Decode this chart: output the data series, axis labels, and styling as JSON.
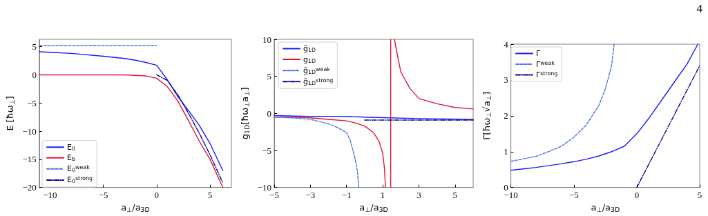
{
  "chart_data": [
    {
      "type": "line",
      "xlabel": "a$_{⊥}$/a$_{3D}$",
      "ylabel": "E [ħω$_{⊥}$]",
      "xlim": [
        -11,
        7
      ],
      "ylim": [
        -20,
        6.3
      ],
      "xticks": [
        -10,
        -5,
        0,
        5
      ],
      "yticks": [
        -20,
        -15,
        -10,
        -5,
        0,
        5
      ],
      "grid": false,
      "legend": "bottom left",
      "series": [
        {
          "name": "E$_{0}$",
          "color": "#1a1aff",
          "line_style": "solid",
          "x": [
            -11,
            -10,
            -8,
            -5,
            -3,
            -2,
            -1,
            0,
            1,
            2,
            3,
            4,
            5,
            6.2
          ],
          "values": [
            4.1,
            4.0,
            3.8,
            3.3,
            2.9,
            2.6,
            2.2,
            1.7,
            -0.9,
            -3.9,
            -6.4,
            -9.0,
            -12.2,
            -17.0
          ]
        },
        {
          "name": "E$_{b}$",
          "color": "#dc143c",
          "line_style": "solid",
          "x": [
            -11,
            -8,
            -5,
            -3,
            -2,
            -1,
            0,
            1,
            2,
            3,
            4,
            5,
            6.2
          ],
          "values": [
            0,
            0,
            0,
            0,
            -0.1,
            -0.2,
            -0.6,
            -2.1,
            -4.7,
            -8.2,
            -11.8,
            -15.0,
            -20.0
          ]
        },
        {
          "name": "E$_{0}$$^{weak}$",
          "color": "#4f74e3",
          "line_style": "dashed",
          "x": [
            -11,
            0
          ],
          "values": [
            5.2,
            5.2
          ]
        },
        {
          "name": "E$_{0}$$^{strong}$",
          "color": "#000080",
          "line_style": "dashdot",
          "x": [
            0,
            1,
            2,
            3,
            4,
            5,
            6.2
          ],
          "values": [
            0,
            -1.0,
            -3.6,
            -6.9,
            -10.4,
            -14.2,
            -19.2
          ]
        }
      ]
    },
    {
      "type": "line",
      "xlabel": "a$_{⊥}$/a$_{3D}$",
      "ylabel": "g$_{1D}$[ħω$_{⊥}$a$_{⊥}$]",
      "xlim": [
        -5,
        6
      ],
      "ylim": [
        -10,
        10
      ],
      "xticks": [
        -5,
        -3,
        -1,
        1,
        3,
        5
      ],
      "yticks": [
        -10,
        -5,
        0,
        5,
        10
      ],
      "grid": false,
      "legend": "top left",
      "series": [
        {
          "name": "g̃$_{1D}$",
          "color": "#1a1aff",
          "line_style": "solid",
          "x": [
            -5,
            -3,
            -1,
            0,
            1.4,
            3,
            6
          ],
          "values": [
            -0.3,
            -0.4,
            -0.4,
            -0.5,
            -0.6,
            -0.7,
            -0.8
          ]
        },
        {
          "name": "g$_{1D}$",
          "color": "#dc143c",
          "line_style": "solid",
          "x": [
            -5,
            -4,
            -3,
            -2,
            -1,
            -0.5,
            0,
            0.5,
            0.8,
            1,
            1.1,
            1.15,
            1.3,
            1.44,
            1.44,
            1.55,
            1.65,
            1.8,
            2,
            2.5,
            3,
            4,
            5,
            6
          ],
          "values": [
            -0.5,
            -0.5,
            -0.6,
            -0.8,
            -1.0,
            -1.3,
            -1.7,
            -2.6,
            -3.8,
            -5.4,
            -7.5,
            -10,
            null,
            -10,
            10,
            null,
            10,
            8,
            5.6,
            3.4,
            2.0,
            1.3,
            0.8,
            0.6
          ]
        },
        {
          "name": "g̃$_{1D}$$^{weak}$",
          "color": "#4f74e3",
          "line_style": "dashed",
          "x": [
            -5,
            -4,
            -3,
            -2,
            -1.5,
            -1,
            -0.8,
            -0.6,
            -0.5,
            -0.4,
            -0.32
          ],
          "values": [
            -0.5,
            -0.6,
            -0.8,
            -1.4,
            -1.9,
            -2.6,
            -3.6,
            -5.4,
            -6.5,
            -7.8,
            -10
          ]
        },
        {
          "name": "g̃$_{1D}$$^{strong}$",
          "color": "#000080",
          "line_style": "dashdot",
          "x": [
            0,
            6
          ],
          "values": [
            -0.9,
            -0.9
          ]
        }
      ]
    },
    {
      "type": "line",
      "xlabel": "a$_{⊥}$/a$_{3D}$",
      "ylabel": "Γ[ħω$_{⊥}$√a$_{⊥}$]",
      "xlim": [
        -10,
        5
      ],
      "ylim": [
        0,
        4
      ],
      "xticks": [
        -10,
        -5,
        0,
        5
      ],
      "yticks": [
        0,
        1,
        2,
        3,
        4
      ],
      "grid": false,
      "legend": "top left",
      "annotations": [
        "4"
      ],
      "series": [
        {
          "name": "Γ",
          "color": "#1a1aff",
          "line_style": "solid",
          "x": [
            -10,
            -8,
            -6,
            -5,
            -4,
            -3,
            -2,
            -1,
            0,
            1,
            2,
            3,
            4,
            4.85
          ],
          "values": [
            0.48,
            0.56,
            0.66,
            0.72,
            0.79,
            0.88,
            1.0,
            1.15,
            1.5,
            1.95,
            2.45,
            2.95,
            3.45,
            4.0
          ]
        },
        {
          "name": "Γ$^{weak}$",
          "color": "#4f74e3",
          "line_style": "dashed",
          "x": [
            -10,
            -9,
            -8,
            -7,
            -6,
            -5,
            -4,
            -3,
            -2.5,
            -2,
            -1.8
          ],
          "values": [
            0.73,
            0.8,
            0.87,
            1.0,
            1.15,
            1.4,
            1.75,
            2.3,
            2.75,
            3.4,
            4.0
          ]
        },
        {
          "name": "Γ$^{strong}$",
          "color": "#000080",
          "line_style": "dashdot",
          "x": [
            0,
            5
          ],
          "values": [
            0,
            3.4
          ]
        }
      ]
    }
  ]
}
